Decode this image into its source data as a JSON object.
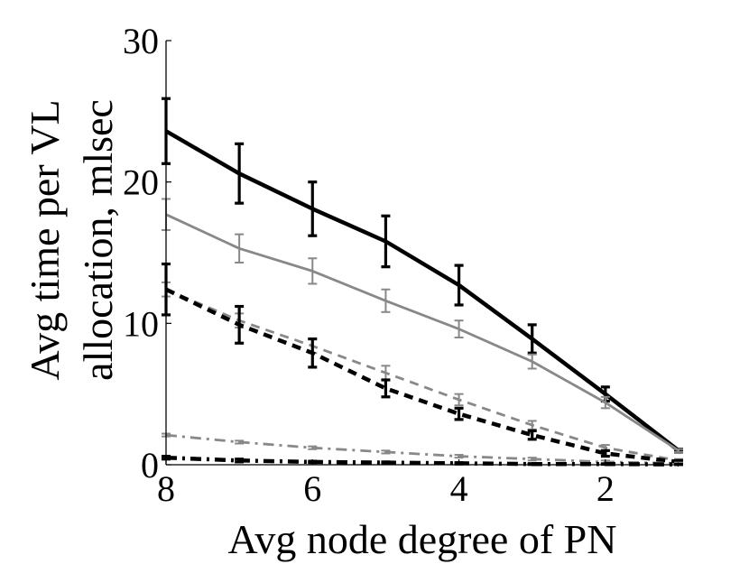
{
  "chart_data": {
    "type": "line",
    "xlabel": "Avg node degree of PN",
    "ylabel_lines": [
      "Avg time per VL",
      "allocation, mlsec"
    ],
    "x_ticks": [
      8,
      6,
      4,
      2
    ],
    "y_ticks": [
      0,
      10,
      20,
      30
    ],
    "xlim": [
      8,
      1
    ],
    "ylim": [
      0,
      30
    ],
    "x_reversed": true,
    "grid": false,
    "legend": "none",
    "x": [
      8,
      7,
      6,
      5,
      4,
      3,
      2,
      1
    ],
    "series": [
      {
        "color": "#000000",
        "style": "solid",
        "width": 4.5,
        "values": [
          23.6,
          20.6,
          18.1,
          15.8,
          12.7,
          8.9,
          5.0,
          1.0
        ],
        "errors": [
          2.3,
          2.1,
          1.9,
          1.8,
          1.4,
          1.0,
          0.5,
          0.1
        ]
      },
      {
        "color": "#888888",
        "style": "solid",
        "width": 2.8,
        "values": [
          17.7,
          15.3,
          13.7,
          11.6,
          9.6,
          7.3,
          4.4,
          1.0
        ],
        "errors": [
          1.1,
          1.0,
          0.9,
          0.8,
          0.6,
          0.5,
          0.4,
          0.1
        ]
      },
      {
        "color": "#888888",
        "style": "dashed",
        "width": 2.8,
        "values": [
          12.4,
          10.2,
          8.4,
          6.5,
          4.6,
          2.8,
          1.2,
          0.3
        ],
        "errors": [
          0.5,
          0.5,
          0.5,
          0.5,
          0.4,
          0.3,
          0.2,
          0.1
        ]
      },
      {
        "color": "#000000",
        "style": "dashed",
        "width": 4.5,
        "values": [
          12.4,
          9.9,
          7.9,
          5.4,
          3.6,
          2.1,
          0.8,
          0.2
        ],
        "errors": [
          1.8,
          1.3,
          1.0,
          0.6,
          0.4,
          0.3,
          0.2,
          0.1
        ]
      },
      {
        "color": "#888888",
        "style": "dashdot",
        "width": 2.8,
        "values": [
          2.1,
          1.6,
          1.2,
          0.9,
          0.6,
          0.4,
          0.2,
          0.1
        ],
        "errors": [
          0.1,
          0.1,
          0.1,
          0.1,
          0.1,
          0.1,
          0.1,
          0.05
        ]
      },
      {
        "color": "#000000",
        "style": "dashdot",
        "width": 4.5,
        "values": [
          0.5,
          0.3,
          0.2,
          0.15,
          0.1,
          0.05,
          0.05,
          0.02
        ],
        "errors": [
          0.1,
          0.1,
          0.05,
          0.05,
          0.05,
          0.03,
          0.02,
          0.01
        ]
      }
    ]
  }
}
